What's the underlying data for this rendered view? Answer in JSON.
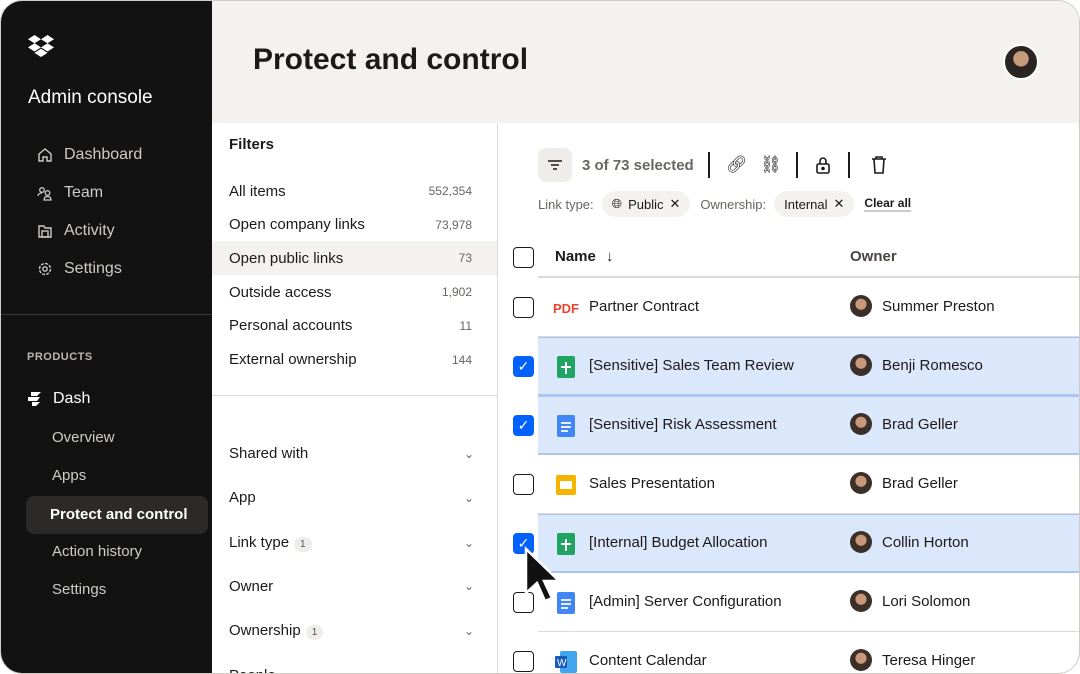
{
  "sidebar": {
    "title": "Admin console",
    "nav": [
      {
        "label": "Dashboard",
        "icon": "home-icon"
      },
      {
        "label": "Team",
        "icon": "team-icon"
      },
      {
        "label": "Activity",
        "icon": "activity-icon"
      },
      {
        "label": "Settings",
        "icon": "gear-icon"
      }
    ],
    "products_label": "PRODUCTS",
    "product": "Dash",
    "sub": [
      "Overview",
      "Apps",
      "Protect and control",
      "Action history",
      "Settings"
    ],
    "active_sub": "Protect and control"
  },
  "header": {
    "title": "Protect and control"
  },
  "filters": {
    "title": "Filters",
    "items": [
      {
        "label": "All items",
        "count": "552,354"
      },
      {
        "label": "Open company links",
        "count": "73,978"
      },
      {
        "label": "Open public links",
        "count": "73"
      },
      {
        "label": "Outside access",
        "count": "1,902"
      },
      {
        "label": "Personal accounts",
        "count": "11"
      },
      {
        "label": "External ownership",
        "count": "144"
      }
    ],
    "accordions": [
      {
        "label": "Shared with",
        "badge": ""
      },
      {
        "label": "App",
        "badge": ""
      },
      {
        "label": "Link type",
        "badge": "1"
      },
      {
        "label": "Owner",
        "badge": ""
      },
      {
        "label": "Ownership",
        "badge": "1"
      },
      {
        "label": "People",
        "badge": ""
      }
    ]
  },
  "toolbar": {
    "selected": "3 of 73 selected",
    "link_type_label": "Link type:",
    "link_type_value": "Public",
    "ownership_label": "Ownership:",
    "ownership_value": "Internal",
    "clear_all": "Clear all"
  },
  "table": {
    "columns": {
      "name": "Name",
      "owner": "Owner"
    },
    "rows": [
      {
        "name": "Partner Contract",
        "owner": "Summer Preston",
        "type": "pdf",
        "selected": false
      },
      {
        "name": "[Sensitive] Sales Team Review",
        "owner": "Benji Romesco",
        "type": "sheet",
        "selected": true
      },
      {
        "name": "[Sensitive] Risk Assessment",
        "owner": "Brad Geller",
        "type": "doc",
        "selected": true
      },
      {
        "name": "Sales Presentation",
        "owner": "Brad Geller",
        "type": "slides",
        "selected": false
      },
      {
        "name": "[Internal] Budget Allocation",
        "owner": "Collin Horton",
        "type": "sheet",
        "selected": true
      },
      {
        "name": "[Admin] Server Configuration",
        "owner": "Lori Solomon",
        "type": "doc",
        "selected": false
      },
      {
        "name": "Content Calendar",
        "owner": "Teresa Hinger",
        "type": "word",
        "selected": false
      }
    ],
    "pdf_label": "PDF"
  },
  "colors": {
    "accent": "#0061fe",
    "selected_row": "#dbe7fa",
    "sidebar": "#121212"
  }
}
